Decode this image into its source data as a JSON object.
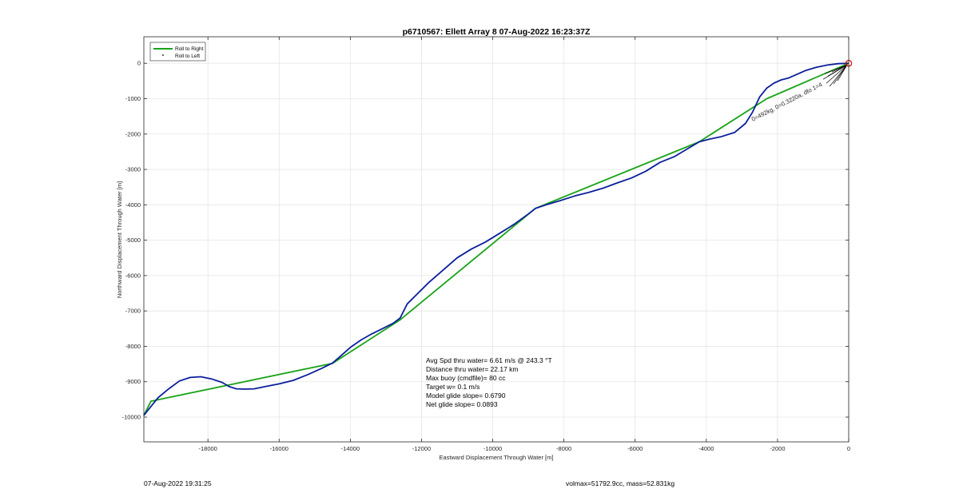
{
  "chart_data": {
    "type": "line",
    "title": "p6710567: Ellett Array 8 07-Aug-2022 16:23:37Z",
    "xlabel": "Eastward Displacement Through Water [m]",
    "ylabel": "Northward Displacement Through Water [m]",
    "xlim": [
      -19800,
      0
    ],
    "ylim": [
      -10700,
      750
    ],
    "x_ticks": [
      -18000,
      -16000,
      -14000,
      -12000,
      -10000,
      -8000,
      -6000,
      -4000,
      -2000,
      0
    ],
    "x_tick_labels": [
      "-18000",
      "-16000",
      "-14000",
      "-12000",
      "-10000",
      "-8000",
      "-6000",
      "-4000",
      "-2000",
      "0"
    ],
    "y_ticks": [
      0,
      -1000,
      -2000,
      -3000,
      -4000,
      -5000,
      -6000,
      -7000,
      -8000,
      -9000,
      -10000
    ],
    "y_tick_labels": [
      "0",
      "-1000",
      "-2000",
      "-3000",
      "-4000",
      "-5000",
      "-6000",
      "-7000",
      "-8000",
      "-9000",
      "-10000"
    ],
    "grid": true,
    "legend_position": "top-left",
    "legend": [
      {
        "label": "Roll to Right",
        "marker": "line",
        "color": "#1aa31a"
      },
      {
        "label": "Roll to Left",
        "marker": "dot",
        "color": "#000000"
      }
    ],
    "series": [
      {
        "name": "Roll to Right",
        "color": "#1aa31a",
        "points": [
          [
            -19800,
            -9950
          ],
          [
            -19600,
            -9550
          ],
          [
            -14500,
            -8480
          ],
          [
            -12600,
            -7250
          ],
          [
            -8800,
            -4100
          ],
          [
            -4200,
            -2220
          ],
          [
            -2300,
            -1000
          ],
          [
            0,
            0
          ]
        ]
      },
      {
        "color": "#0b1f9c",
        "points": [
          [
            -19800,
            -9950
          ],
          [
            -19600,
            -9700
          ],
          [
            -19400,
            -9450
          ],
          [
            -19100,
            -9200
          ],
          [
            -18800,
            -8980
          ],
          [
            -18500,
            -8880
          ],
          [
            -18200,
            -8860
          ],
          [
            -17900,
            -8920
          ],
          [
            -17600,
            -9020
          ],
          [
            -17400,
            -9140
          ],
          [
            -17200,
            -9200
          ],
          [
            -16950,
            -9210
          ],
          [
            -16700,
            -9200
          ],
          [
            -16400,
            -9140
          ],
          [
            -16000,
            -9060
          ],
          [
            -15600,
            -8960
          ],
          [
            -15200,
            -8800
          ],
          [
            -14800,
            -8620
          ],
          [
            -14500,
            -8470
          ],
          [
            -14300,
            -8300
          ],
          [
            -14000,
            -8030
          ],
          [
            -13700,
            -7820
          ],
          [
            -13400,
            -7650
          ],
          [
            -13100,
            -7500
          ],
          [
            -12800,
            -7350
          ],
          [
            -12600,
            -7200
          ],
          [
            -12400,
            -6800
          ],
          [
            -12100,
            -6500
          ],
          [
            -11800,
            -6200
          ],
          [
            -11400,
            -5850
          ],
          [
            -11000,
            -5500
          ],
          [
            -10600,
            -5250
          ],
          [
            -10200,
            -5050
          ],
          [
            -9800,
            -4800
          ],
          [
            -9400,
            -4550
          ],
          [
            -9000,
            -4260
          ],
          [
            -8800,
            -4100
          ],
          [
            -8500,
            -4000
          ],
          [
            -8100,
            -3880
          ],
          [
            -7700,
            -3750
          ],
          [
            -7300,
            -3650
          ],
          [
            -6900,
            -3530
          ],
          [
            -6500,
            -3380
          ],
          [
            -6100,
            -3240
          ],
          [
            -5700,
            -3050
          ],
          [
            -5300,
            -2800
          ],
          [
            -4900,
            -2640
          ],
          [
            -4500,
            -2400
          ],
          [
            -4200,
            -2220
          ],
          [
            -3900,
            -2140
          ],
          [
            -3600,
            -2080
          ],
          [
            -3200,
            -1950
          ],
          [
            -2900,
            -1700
          ],
          [
            -2700,
            -1380
          ],
          [
            -2500,
            -950
          ],
          [
            -2300,
            -700
          ],
          [
            -2100,
            -560
          ],
          [
            -1900,
            -470
          ],
          [
            -1700,
            -420
          ],
          [
            -1450,
            -310
          ],
          [
            -1200,
            -200
          ],
          [
            -900,
            -110
          ],
          [
            -600,
            -50
          ],
          [
            -300,
            -10
          ],
          [
            0,
            0
          ]
        ]
      }
    ],
    "annotations": {
      "rotated_label": "0=492kg, 0=0.3220a, dfo 1=4",
      "stats": [
        "Avg Spd thru water=  6.61 m/s @ 243.3 °T",
        "Distance thru water= 22.17 km",
        "Max buoy (cmdfile)= 80 cc",
        "Target w= 0.1 m/s",
        "Model glide slope= 0.6790",
        "Net glide slope= 0.0893"
      ]
    }
  },
  "footer": {
    "timestamp": "07-Aug-2022 19:31:25",
    "volmax": "volmax=51792.9cc, mass=52.831kg"
  },
  "colors": {
    "axis": "#262626",
    "grid": "#e6e6e6",
    "end_marker": "#e01010",
    "arrows": "#000000"
  }
}
